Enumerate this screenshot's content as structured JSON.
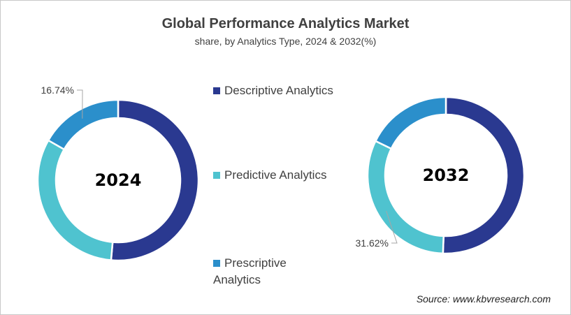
{
  "chart_data": {
    "type": "donut",
    "title": "Global Performance Analytics Market",
    "subtitle": "share, by Analytics Type, 2024 & 2032(%)",
    "legend": [
      {
        "name": "Descriptive Analytics",
        "color": "#2a3990"
      },
      {
        "name": "Predictive Analytics",
        "color": "#4fc3cf"
      },
      {
        "name": "Prescriptive Analytics",
        "color": "#2b8fcb"
      }
    ],
    "charts": [
      {
        "label": "2024",
        "values": [
          51.4,
          31.86,
          16.74
        ],
        "annotation": "16.74%",
        "annotated_index": 2
      },
      {
        "label": "2032",
        "values": [
          50.6,
          31.62,
          17.78
        ],
        "annotation": "31.62%",
        "annotated_index": 1
      }
    ],
    "legend_placement": "center"
  },
  "source": "Source: www.kbvresearch.com"
}
